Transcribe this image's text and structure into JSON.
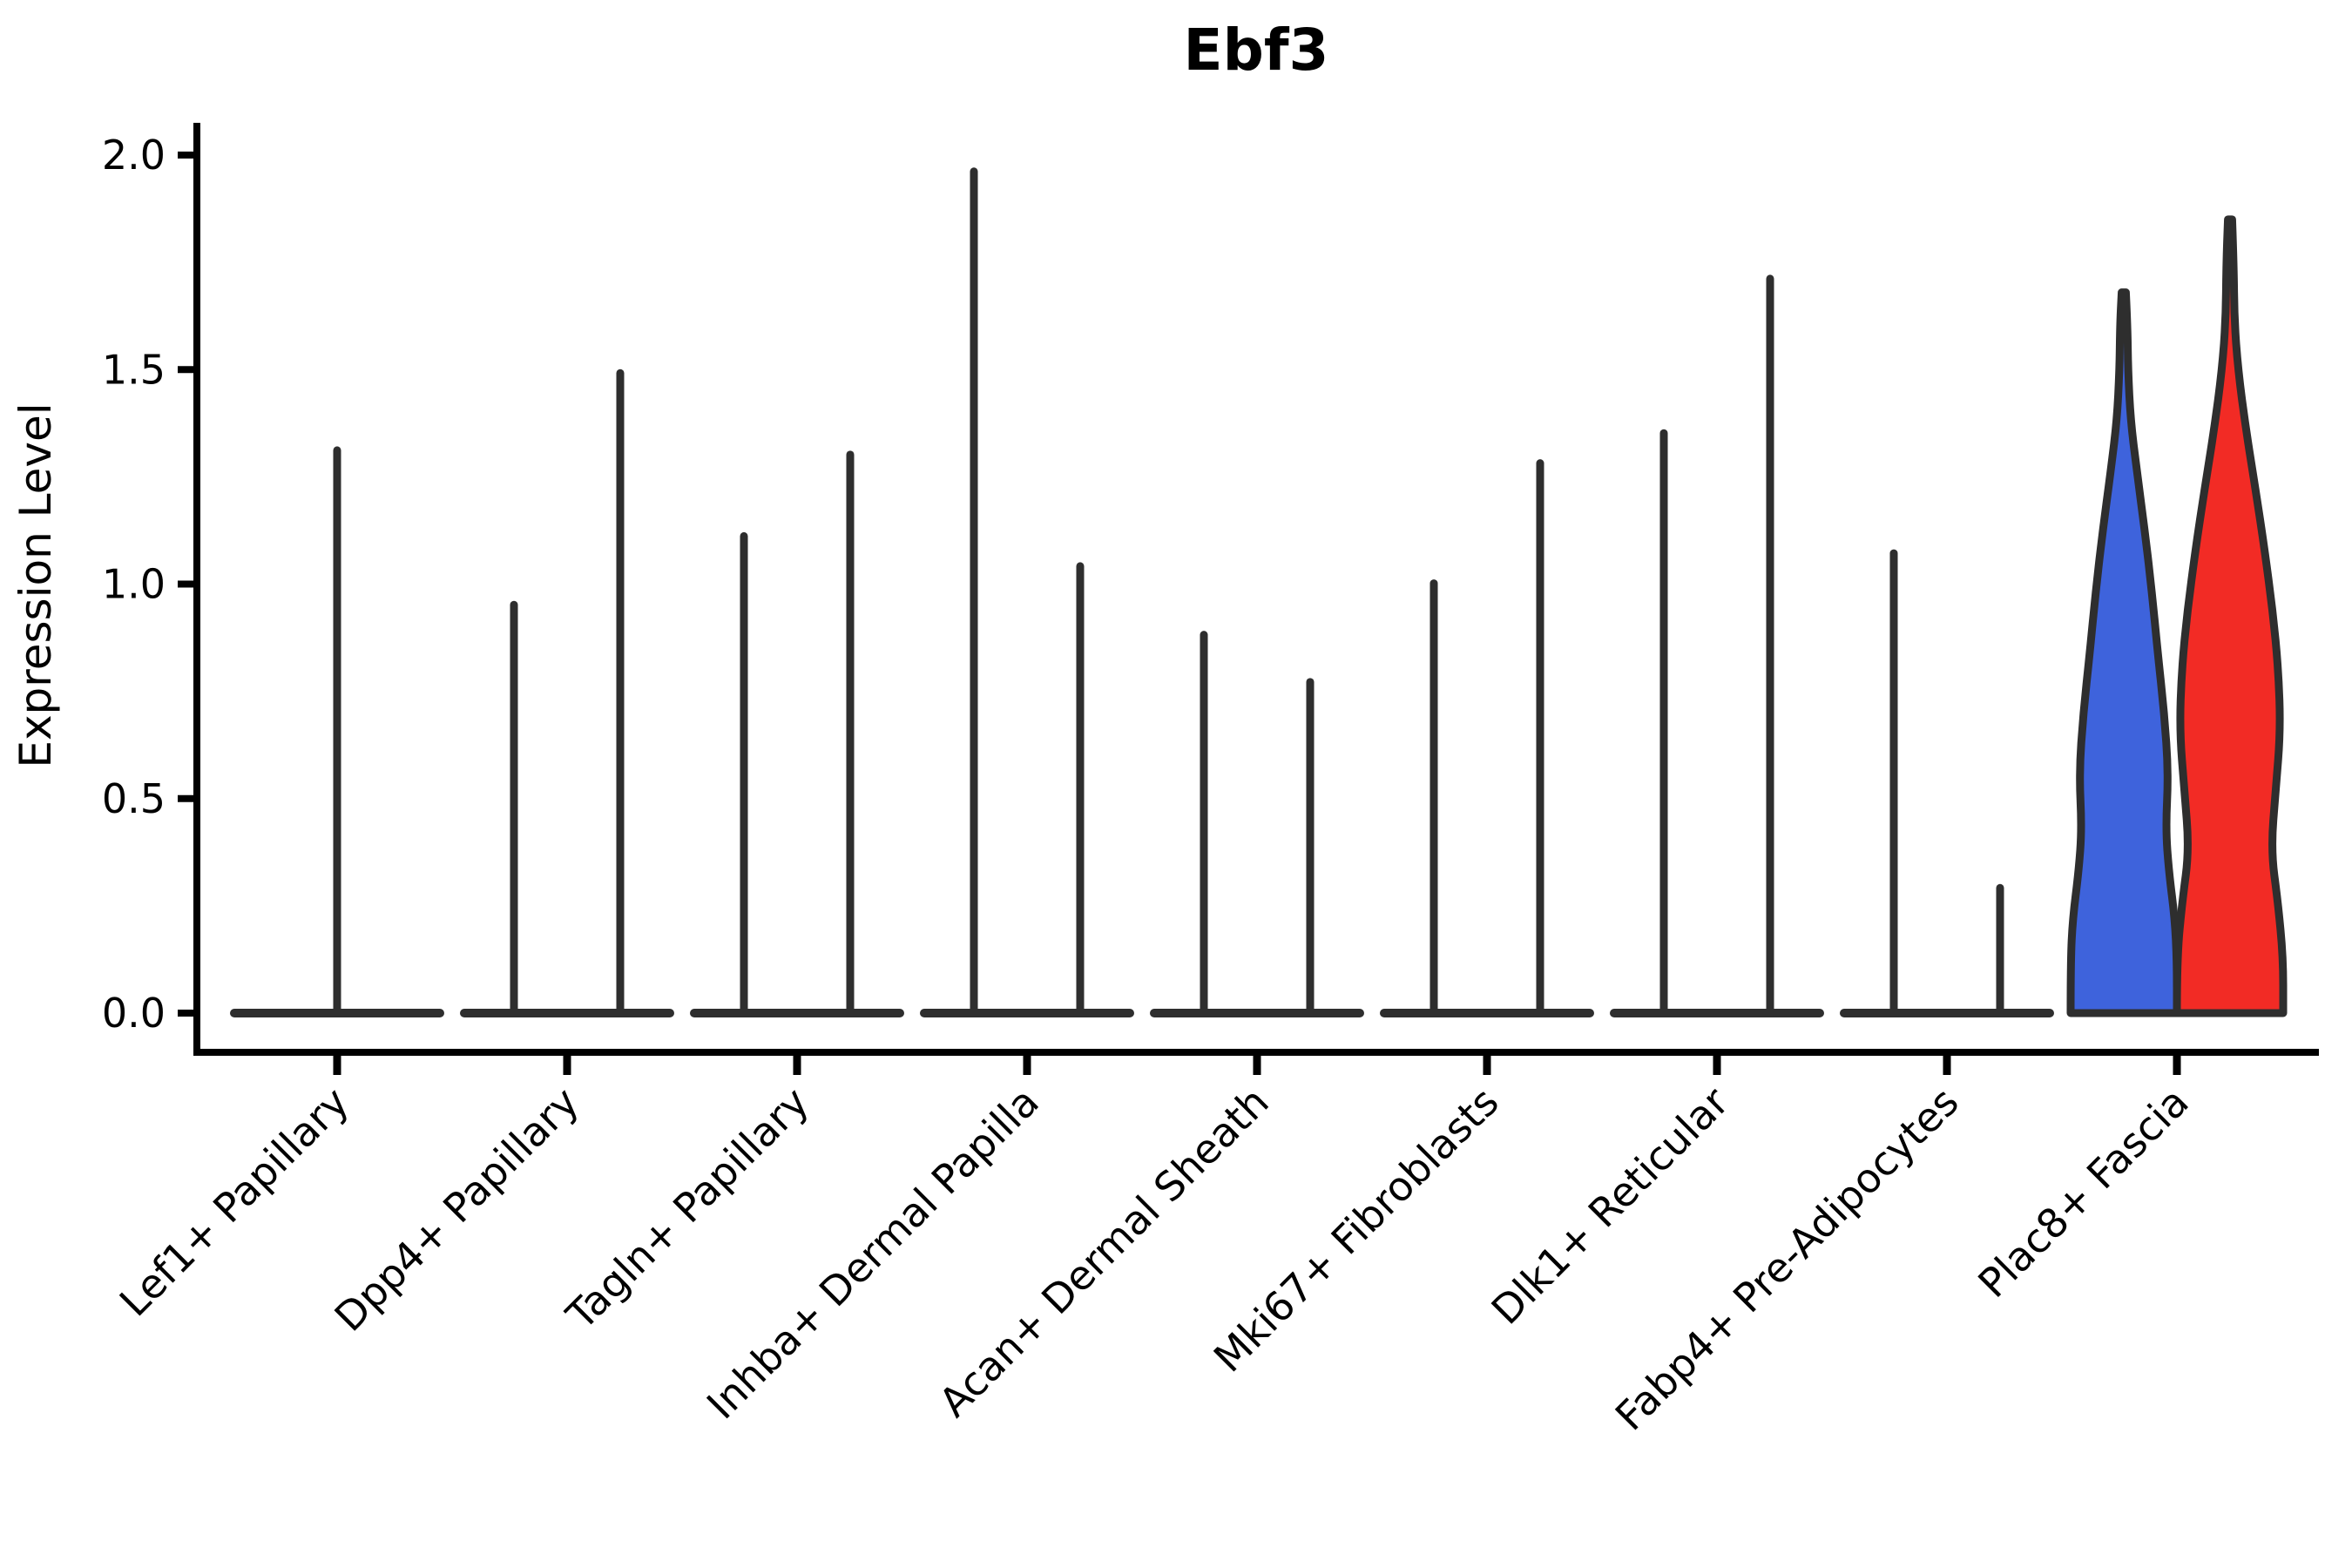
{
  "chart_data": {
    "type": "violin",
    "title": "Ebf3",
    "ylabel": "Expression Level",
    "xlabel": "",
    "yticks": [
      "2.0",
      "1.5",
      "1.0",
      "0.5",
      "0.0"
    ],
    "ytick_values": [
      2.0,
      1.5,
      1.0,
      0.5,
      0.0
    ],
    "ylim": [
      -0.09,
      2.08
    ],
    "grid": "off",
    "legend": "none",
    "categories": [
      "Lef1+ Papillary",
      "Dpp4+ Papillary",
      "Tagln+ Papillary",
      "Inhba+ Dermal Papilla",
      "Acan+ Dermal Sheath",
      "Mki67+ Fibroblasts",
      "Dlk1+ Reticular",
      "Fabp4+ Pre-Adipocytes",
      "Plac8+ Fascia"
    ],
    "groups": [
      {
        "category": "Lef1+ Papillary",
        "violins": [
          {
            "style": "collapsed-spike",
            "offset": 0,
            "max": 1.32
          }
        ]
      },
      {
        "category": "Dpp4+ Papillary",
        "violins": [
          {
            "style": "collapsed-spike",
            "offset": -1,
            "max": 0.96
          },
          {
            "style": "collapsed-spike",
            "offset": 1,
            "max": 1.5
          }
        ]
      },
      {
        "category": "Tagln+ Papillary",
        "violins": [
          {
            "style": "collapsed-spike",
            "offset": -1,
            "max": 1.12
          },
          {
            "style": "collapsed-spike",
            "offset": 1,
            "max": 1.31
          }
        ]
      },
      {
        "category": "Inhba+ Dermal Papilla",
        "violins": [
          {
            "style": "collapsed-spike",
            "offset": -1,
            "max": 1.97
          },
          {
            "style": "collapsed-spike",
            "offset": 1,
            "max": 1.05
          }
        ]
      },
      {
        "category": "Acan+ Dermal Sheath",
        "violins": [
          {
            "style": "collapsed-spike",
            "offset": -1,
            "max": 0.89
          },
          {
            "style": "collapsed-spike",
            "offset": 1,
            "max": 0.78
          }
        ]
      },
      {
        "category": "Mki67+ Fibroblasts",
        "violins": [
          {
            "style": "collapsed-spike",
            "offset": -1,
            "max": 1.01
          },
          {
            "style": "collapsed-spike",
            "offset": 1,
            "max": 1.29
          }
        ]
      },
      {
        "category": "Dlk1+ Reticular",
        "violins": [
          {
            "style": "collapsed-spike",
            "offset": -1,
            "max": 1.36
          },
          {
            "style": "collapsed-spike",
            "offset": 1,
            "max": 1.72
          }
        ]
      },
      {
        "category": "Fabp4+ Pre-Adipocytes",
        "violins": [
          {
            "style": "collapsed-spike",
            "offset": -1,
            "max": 1.08
          },
          {
            "style": "collapsed-spike",
            "offset": 1,
            "max": 0.3
          }
        ]
      },
      {
        "category": "Plac8+ Fascia",
        "violins": [
          {
            "style": "filled-violin",
            "offset": -1,
            "max": 1.68,
            "fill_color": "#3E63DC",
            "profile": [
              [
                0,
                1.0
              ],
              [
                0.12,
                1.0
              ],
              [
                0.22,
                0.96
              ],
              [
                0.33,
                0.85
              ],
              [
                0.43,
                0.79
              ],
              [
                0.56,
                0.84
              ],
              [
                0.7,
                0.76
              ],
              [
                0.84,
                0.64
              ],
              [
                0.98,
                0.53
              ],
              [
                1.12,
                0.4
              ],
              [
                1.26,
                0.25
              ],
              [
                1.38,
                0.13
              ],
              [
                1.5,
                0.08
              ],
              [
                1.6,
                0.07
              ],
              [
                1.68,
                0.04
              ]
            ]
          },
          {
            "style": "filled-violin",
            "offset": 1,
            "max": 1.85,
            "fill_color": "#F22B25",
            "profile": [
              [
                0,
                1.0
              ],
              [
                0.13,
                1.0
              ],
              [
                0.26,
                0.9
              ],
              [
                0.38,
                0.77
              ],
              [
                0.52,
                0.86
              ],
              [
                0.66,
                0.95
              ],
              [
                0.8,
                0.91
              ],
              [
                0.94,
                0.8
              ],
              [
                1.08,
                0.65
              ],
              [
                1.22,
                0.48
              ],
              [
                1.36,
                0.3
              ],
              [
                1.5,
                0.15
              ],
              [
                1.62,
                0.08
              ],
              [
                1.74,
                0.07
              ],
              [
                1.85,
                0.04
              ]
            ]
          }
        ]
      }
    ],
    "colors": {
      "violin_outline": "#2e2e2e",
      "axis": "#000000",
      "fascia_blue": "#3E63DC",
      "fascia_red": "#F22B25",
      "background": "#ffffff"
    }
  }
}
